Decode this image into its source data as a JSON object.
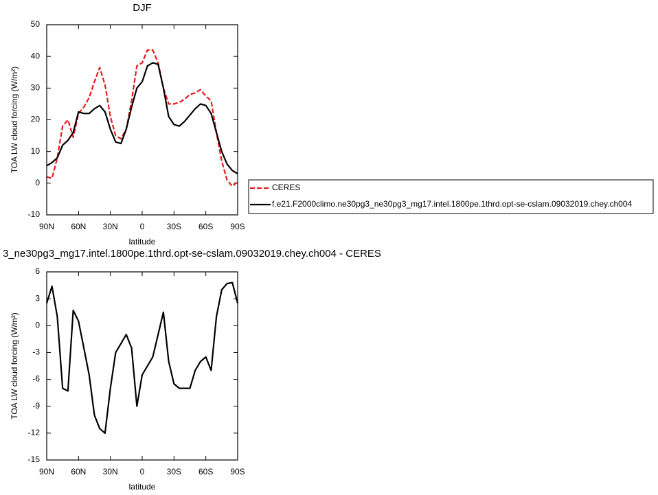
{
  "chart_data": [
    {
      "type": "line",
      "title": "DJF",
      "xlabel": "latitude",
      "ylabel": "TOA LW cloud forcing (W/m²)",
      "x": [
        90,
        85,
        80,
        75,
        70,
        65,
        60,
        55,
        50,
        45,
        40,
        35,
        30,
        25,
        20,
        15,
        10,
        5,
        0,
        -5,
        -10,
        -15,
        -20,
        -25,
        -30,
        -35,
        -40,
        -45,
        -50,
        -55,
        -60,
        -65,
        -70,
        -75,
        -80,
        -85,
        -90
      ],
      "series": [
        {
          "name": "CERES",
          "color": "#e41a1c",
          "linestyle": "dashed",
          "values": [
            2,
            1.5,
            8,
            18,
            20,
            14.5,
            22,
            24,
            27,
            32,
            36.5,
            31,
            21,
            15,
            14,
            17,
            26,
            37,
            38,
            42,
            42,
            38,
            30,
            25,
            25,
            25.5,
            26.5,
            28,
            28.5,
            29.5,
            27.5,
            26,
            16,
            7,
            1,
            -1,
            0.5
          ]
        },
        {
          "name": "f.e21.F2000climo.ne30pg3_ne30pg3_mg17.intel.1800pe.1thrd.opt-se-cslam.09032019.chey.ch004",
          "color": "#000000",
          "linestyle": "solid",
          "values": [
            5.5,
            6.5,
            8,
            12,
            13.5,
            16,
            22.5,
            22,
            22,
            23.5,
            24.5,
            22.5,
            17,
            13,
            12.5,
            17,
            24,
            30,
            32,
            37,
            38,
            37.5,
            30,
            21,
            18.5,
            18,
            19.5,
            21.5,
            23.5,
            25,
            24.5,
            22,
            16,
            10,
            6,
            4,
            3
          ]
        }
      ],
      "xlim": [
        90,
        -90
      ],
      "xticks": [
        {
          "value": 90,
          "label": "90N"
        },
        {
          "value": 60,
          "label": "60N"
        },
        {
          "value": 30,
          "label": "30N"
        },
        0,
        {
          "value": -30,
          "label": "30S"
        },
        {
          "value": -60,
          "label": "60S"
        },
        {
          "value": -90,
          "label": "90S"
        }
      ],
      "ylim": [
        -10,
        50
      ],
      "yticks": [
        -10,
        0,
        10,
        20,
        30,
        40,
        50
      ],
      "legend": "right"
    },
    {
      "type": "line",
      "title": "3_ne30pg3_mg17.intel.1800pe.1thrd.opt-se-cslam.09032019.chey.ch004 - CERES",
      "xlabel": "latitude",
      "ylabel": "TOA LW cloud forcing (W/m²)",
      "x": [
        90,
        85,
        80,
        75,
        70,
        65,
        60,
        55,
        50,
        45,
        40,
        35,
        30,
        25,
        20,
        15,
        10,
        5,
        0,
        -5,
        -10,
        -15,
        -20,
        -25,
        -30,
        -35,
        -40,
        -45,
        -50,
        -55,
        -60,
        -65,
        -70,
        -75,
        -80,
        -85,
        -90
      ],
      "series": [
        {
          "color": "#000000",
          "linestyle": "solid",
          "values": [
            2.5,
            4.4,
            1,
            -7,
            -7.3,
            1.7,
            0.5,
            -2.5,
            -5.5,
            -10,
            -11.5,
            -12,
            -7,
            -3,
            -2,
            -1,
            -2.5,
            -9,
            -5.5,
            -4.5,
            -3.5,
            -1,
            1.5,
            -4,
            -6.5,
            -7,
            -7,
            -7,
            -5,
            -4,
            -3.5,
            -5,
            1,
            4,
            4.7,
            4.8,
            2.5
          ]
        }
      ],
      "xlim": [
        90,
        -90
      ],
      "xticks": [
        {
          "value": 90,
          "label": "90N"
        },
        {
          "value": 60,
          "label": "60N"
        },
        {
          "value": 30,
          "label": "30N"
        },
        0,
        {
          "value": -30,
          "label": "30S"
        },
        {
          "value": -60,
          "label": "60S"
        },
        {
          "value": -90,
          "label": "90S"
        }
      ],
      "ylim": [
        -15,
        6
      ],
      "yticks": [
        -15,
        -12,
        -9,
        -6,
        -3,
        0,
        3,
        6
      ]
    }
  ]
}
